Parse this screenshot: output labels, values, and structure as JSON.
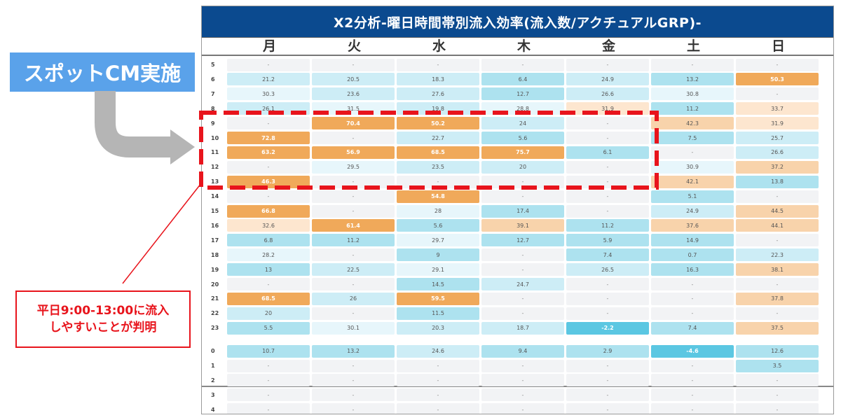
{
  "title": "X2分析-曜日時間帯別流入効率(流入数/アクチュアルGRP)-",
  "days": [
    "月",
    "火",
    "水",
    "木",
    "金",
    "土",
    "日"
  ],
  "annotation_spot": "スポットCM実施",
  "callout": {
    "line1": "平日9:00-13:00に流入",
    "line2": "しやすいことが判明"
  },
  "colors": {
    "title_bg": "#0b4a8f",
    "orange": "#f0a95a",
    "blue": "#ade2ef",
    "highlight_red": "#e8141c"
  },
  "rows": [
    {
      "hour": "5",
      "cells": [
        [
          "-",
          "n"
        ],
        [
          "-",
          "n"
        ],
        [
          "-",
          "n"
        ],
        [
          "-",
          "n"
        ],
        [
          "-",
          "n"
        ],
        [
          "-",
          "n"
        ],
        [
          "-",
          "n"
        ]
      ]
    },
    {
      "hour": "6",
      "cells": [
        [
          "21.2",
          "b2"
        ],
        [
          "20.5",
          "b2"
        ],
        [
          "18.3",
          "b2"
        ],
        [
          "6.4",
          "b3"
        ],
        [
          "24.9",
          "b2"
        ],
        [
          "13.2",
          "b3"
        ],
        [
          "50.3",
          "o1"
        ]
      ]
    },
    {
      "hour": "7",
      "cells": [
        [
          "30.3",
          "b1"
        ],
        [
          "23.6",
          "b2"
        ],
        [
          "27.6",
          "b2"
        ],
        [
          "12.7",
          "b3"
        ],
        [
          "26.6",
          "b2"
        ],
        [
          "30.8",
          "b1"
        ],
        [
          "-",
          "n"
        ]
      ]
    },
    {
      "hour": "8",
      "cells": [
        [
          "26.1",
          "b2"
        ],
        [
          "31.5",
          "b1"
        ],
        [
          "19.8",
          "b2"
        ],
        [
          "28.8",
          "b1"
        ],
        [
          "31.9",
          "o3"
        ],
        [
          "11.2",
          "b3"
        ],
        [
          "33.7",
          "o3"
        ]
      ]
    },
    {
      "hour": "9",
      "cells": [
        [
          "-",
          "n"
        ],
        [
          "70.4",
          "o1"
        ],
        [
          "50.2",
          "o1"
        ],
        [
          "24",
          "b2"
        ],
        [
          "-",
          "n"
        ],
        [
          "42.3",
          "o2"
        ],
        [
          "31.9",
          "o3"
        ]
      ]
    },
    {
      "hour": "10",
      "cells": [
        [
          "72.8",
          "o1"
        ],
        [
          "-",
          "n"
        ],
        [
          "22.7",
          "b2"
        ],
        [
          "5.6",
          "b3"
        ],
        [
          "-",
          "n"
        ],
        [
          "7.5",
          "b3"
        ],
        [
          "25.7",
          "b2"
        ]
      ]
    },
    {
      "hour": "11",
      "cells": [
        [
          "63.2",
          "o1"
        ],
        [
          "56.9",
          "o1"
        ],
        [
          "68.5",
          "o1"
        ],
        [
          "75.7",
          "o1"
        ],
        [
          "6.1",
          "b3"
        ],
        [
          "-",
          "n"
        ],
        [
          "26.6",
          "b2"
        ]
      ]
    },
    {
      "hour": "12",
      "cells": [
        [
          "-",
          "n"
        ],
        [
          "29.5",
          "b1"
        ],
        [
          "23.5",
          "b2"
        ],
        [
          "20",
          "b2"
        ],
        [
          "-",
          "n"
        ],
        [
          "30.9",
          "b1"
        ],
        [
          "37.2",
          "o2"
        ]
      ]
    },
    {
      "hour": "13",
      "cells": [
        [
          "46.3",
          "o1"
        ],
        [
          "-",
          "n"
        ],
        [
          "-",
          "n"
        ],
        [
          "-",
          "n"
        ],
        [
          "-",
          "n"
        ],
        [
          "42.1",
          "o2"
        ],
        [
          "13.8",
          "b3"
        ]
      ]
    },
    {
      "hour": "14",
      "cells": [
        [
          "-",
          "n"
        ],
        [
          "-",
          "n"
        ],
        [
          "54.8",
          "o1"
        ],
        [
          "-",
          "n"
        ],
        [
          "-",
          "n"
        ],
        [
          "5.1",
          "b3"
        ],
        [
          "-",
          "n"
        ]
      ]
    },
    {
      "hour": "15",
      "cells": [
        [
          "66.8",
          "o1"
        ],
        [
          "-",
          "n"
        ],
        [
          "28",
          "b1"
        ],
        [
          "17.4",
          "b3"
        ],
        [
          "-",
          "n"
        ],
        [
          "24.9",
          "b2"
        ],
        [
          "44.5",
          "o2"
        ]
      ]
    },
    {
      "hour": "16",
      "cells": [
        [
          "32.6",
          "o3"
        ],
        [
          "61.4",
          "o1"
        ],
        [
          "5.6",
          "b3"
        ],
        [
          "39.1",
          "o2"
        ],
        [
          "11.2",
          "b3"
        ],
        [
          "37.6",
          "o2"
        ],
        [
          "44.1",
          "o2"
        ]
      ]
    },
    {
      "hour": "17",
      "cells": [
        [
          "6.8",
          "b3"
        ],
        [
          "11.2",
          "b3"
        ],
        [
          "29.7",
          "b1"
        ],
        [
          "12.7",
          "b3"
        ],
        [
          "5.9",
          "b3"
        ],
        [
          "14.9",
          "b3"
        ],
        [
          "-",
          "n"
        ]
      ]
    },
    {
      "hour": "18",
      "cells": [
        [
          "28.2",
          "b1"
        ],
        [
          "-",
          "n"
        ],
        [
          "9",
          "b3"
        ],
        [
          "-",
          "n"
        ],
        [
          "7.4",
          "b3"
        ],
        [
          "0.7",
          "b3"
        ],
        [
          "22.3",
          "b2"
        ]
      ]
    },
    {
      "hour": "19",
      "cells": [
        [
          "13",
          "b3"
        ],
        [
          "22.5",
          "b2"
        ],
        [
          "29.1",
          "b1"
        ],
        [
          "-",
          "n"
        ],
        [
          "26.5",
          "b2"
        ],
        [
          "16.3",
          "b3"
        ],
        [
          "38.1",
          "o2"
        ]
      ]
    },
    {
      "hour": "20",
      "cells": [
        [
          "-",
          "n"
        ],
        [
          "-",
          "n"
        ],
        [
          "14.5",
          "b3"
        ],
        [
          "24.7",
          "b2"
        ],
        [
          "-",
          "n"
        ],
        [
          "-",
          "n"
        ],
        [
          "-",
          "n"
        ]
      ]
    },
    {
      "hour": "21",
      "cells": [
        [
          "68.5",
          "o1"
        ],
        [
          "26",
          "b2"
        ],
        [
          "59.5",
          "o1"
        ],
        [
          "-",
          "n"
        ],
        [
          "-",
          "n"
        ],
        [
          "-",
          "n"
        ],
        [
          "37.8",
          "o2"
        ]
      ]
    },
    {
      "hour": "22",
      "cells": [
        [
          "20",
          "b2"
        ],
        [
          "-",
          "n"
        ],
        [
          "11.5",
          "b3"
        ],
        [
          "-",
          "n"
        ],
        [
          "-",
          "n"
        ],
        [
          "-",
          "n"
        ],
        [
          "-",
          "n"
        ]
      ]
    },
    {
      "hour": "23",
      "cells": [
        [
          "5.5",
          "b3"
        ],
        [
          "30.1",
          "b1"
        ],
        [
          "20.3",
          "b2"
        ],
        [
          "18.7",
          "b2"
        ],
        [
          "-2.2",
          "b4"
        ],
        [
          "7.4",
          "b3"
        ],
        [
          "37.5",
          "o2"
        ]
      ]
    },
    {
      "hour": "0",
      "cells": [
        [
          "10.7",
          "b3"
        ],
        [
          "13.2",
          "b3"
        ],
        [
          "24.6",
          "b2"
        ],
        [
          "9.4",
          "b3"
        ],
        [
          "2.9",
          "b3"
        ],
        [
          "-4.6",
          "b4"
        ],
        [
          "12.6",
          "b3"
        ]
      ]
    },
    {
      "hour": "1",
      "cells": [
        [
          "-",
          "n"
        ],
        [
          "-",
          "n"
        ],
        [
          "-",
          "n"
        ],
        [
          "-",
          "n"
        ],
        [
          "-",
          "n"
        ],
        [
          "-",
          "n"
        ],
        [
          "3.5",
          "b3"
        ]
      ]
    },
    {
      "hour": "2",
      "cells": [
        [
          "-",
          "n"
        ],
        [
          "-",
          "n"
        ],
        [
          "-",
          "n"
        ],
        [
          "-",
          "n"
        ],
        [
          "-",
          "n"
        ],
        [
          "-",
          "n"
        ],
        [
          "-",
          "n"
        ]
      ]
    },
    {
      "hour": "3",
      "cells": [
        [
          "-",
          "n"
        ],
        [
          "-",
          "n"
        ],
        [
          "-",
          "n"
        ],
        [
          "-",
          "n"
        ],
        [
          "-",
          "n"
        ],
        [
          "-",
          "n"
        ],
        [
          "-",
          "n"
        ]
      ]
    },
    {
      "hour": "4",
      "cells": [
        [
          "-",
          "n"
        ],
        [
          "-",
          "n"
        ],
        [
          "-",
          "n"
        ],
        [
          "-",
          "n"
        ],
        [
          "-",
          "n"
        ],
        [
          "-",
          "n"
        ],
        [
          "-",
          "n"
        ]
      ]
    }
  ]
}
